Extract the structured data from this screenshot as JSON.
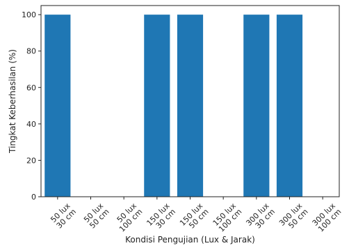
{
  "chart_data": {
    "type": "bar",
    "categories": [
      [
        "50 lux",
        "30 cm"
      ],
      [
        "50 lux",
        "50 cm"
      ],
      [
        "50 lux",
        "100 cm"
      ],
      [
        "150 lux",
        "30 cm"
      ],
      [
        "150 lux",
        "50 cm"
      ],
      [
        "150 lux",
        "100 cm"
      ],
      [
        "300 lux",
        "30 cm"
      ],
      [
        "300 lux",
        "50 cm"
      ],
      [
        "300 lux",
        "100 cm"
      ]
    ],
    "values": [
      100,
      0,
      0,
      100,
      100,
      0,
      100,
      100,
      0
    ],
    "xlabel": "Kondisi Pengujian (Lux & Jarak)",
    "ylabel": "Tingkat Keberhasilan (%)",
    "ylim": [
      0,
      105
    ],
    "yticks": [
      0,
      20,
      40,
      60,
      80,
      100
    ],
    "bar_color": "#1f77b4",
    "grid": false,
    "legend": "none"
  }
}
